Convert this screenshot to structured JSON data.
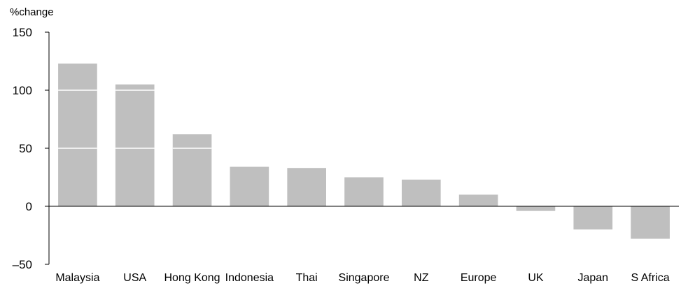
{
  "chart_data": {
    "type": "bar",
    "ylabel": "%change",
    "ylim": [
      -50,
      150
    ],
    "yticks": [
      -50,
      0,
      50,
      100,
      150
    ],
    "grid": "horizontal lines drawn across bars only",
    "categories": [
      "Malaysia",
      "USA",
      "Hong Kong",
      "Indonesia",
      "Thai",
      "Singapore",
      "NZ",
      "Europe",
      "UK",
      "Japan",
      "S Africa"
    ],
    "values": [
      123,
      105,
      62,
      34,
      33,
      25,
      23,
      10,
      -4,
      -20,
      -28
    ],
    "bar_color": "#bfbfbf",
    "gridline_color": "#ffffff",
    "axis_color": "#000000"
  }
}
